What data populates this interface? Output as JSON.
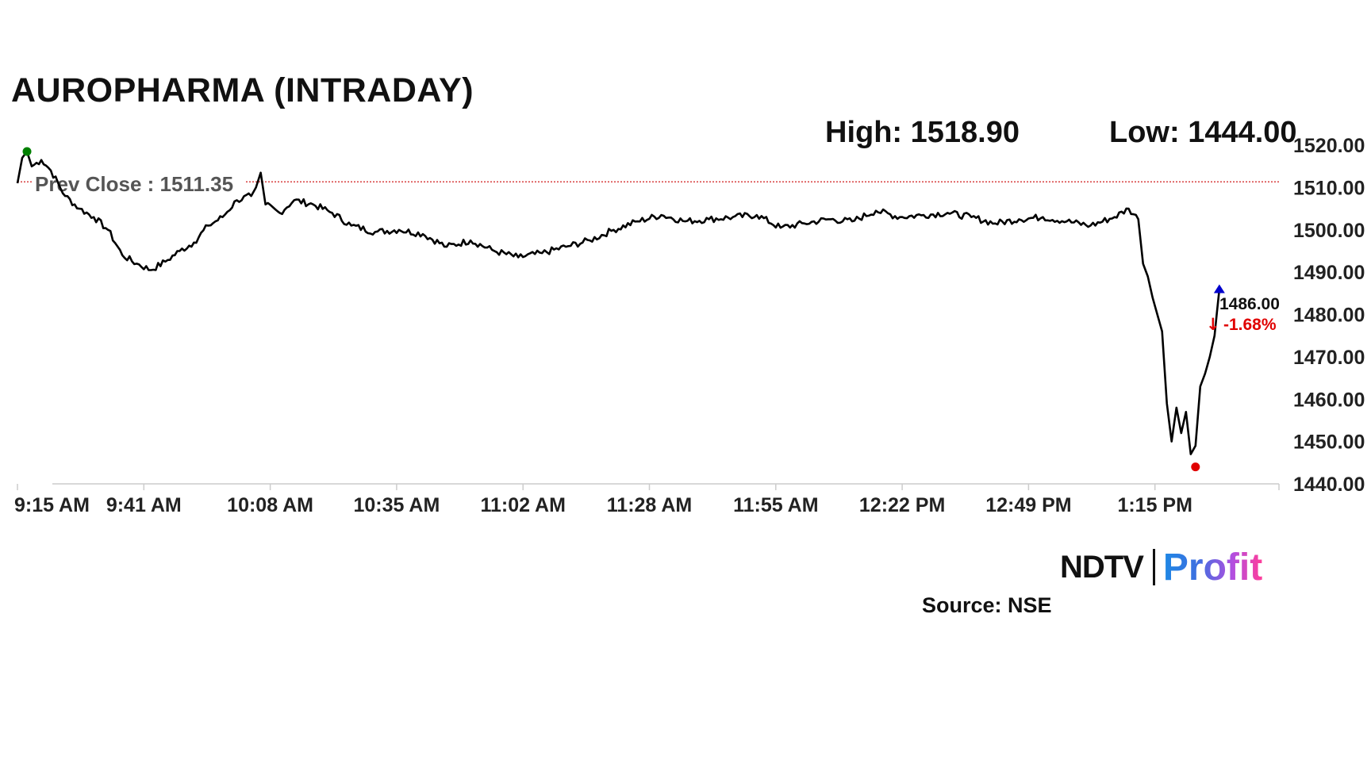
{
  "header": {
    "title": "AUROPHARMA (INTRADAY)",
    "high_text": "High: 1518.90",
    "low_text": "Low: 1444.00"
  },
  "chart_data": {
    "type": "line",
    "title": "AUROPHARMA (INTRADAY)",
    "xlabel": "",
    "ylabel": "",
    "x_tick_labels": [
      "9:15 AM",
      "9:41 AM",
      "10:08 AM",
      "10:35 AM",
      "11:02 AM",
      "11:28 AM",
      "11:55 AM",
      "12:22 PM",
      "12:49 PM",
      "1:15 PM"
    ],
    "y_tick_labels": [
      "1520.00",
      "1510.00",
      "1500.00",
      "1490.00",
      "1480.00",
      "1470.00",
      "1460.00",
      "1450.00",
      "1440.00"
    ],
    "ylim": [
      1440,
      1520
    ],
    "y_axis_side": "right",
    "grid": false,
    "prev_close": {
      "label": "Prev Close : 1511.35",
      "value": 1511.35,
      "color": "#cc0000"
    },
    "series": [
      {
        "name": "",
        "color": "#000000",
        "x": [
          "9:15",
          "9:16",
          "9:17",
          "9:18",
          "9:20",
          "9:22",
          "9:25",
          "9:28",
          "9:31",
          "9:34",
          "9:37",
          "9:40",
          "9:43",
          "9:46",
          "9:49",
          "9:52",
          "9:55",
          "9:58",
          "10:01",
          "10:04",
          "10:05",
          "10:06",
          "10:07",
          "10:10",
          "10:13",
          "10:17",
          "10:21",
          "10:25",
          "10:30",
          "10:35",
          "10:40",
          "10:45",
          "10:50",
          "10:55",
          "11:00",
          "11:05",
          "11:10",
          "11:15",
          "11:20",
          "11:25",
          "11:30",
          "11:35",
          "11:40",
          "11:45",
          "11:50",
          "11:55",
          "12:00",
          "12:05",
          "12:10",
          "12:15",
          "12:20",
          "12:25",
          "12:30",
          "12:35",
          "12:40",
          "12:45",
          "12:50",
          "12:55",
          "13:00",
          "13:05",
          "13:08",
          "13:10",
          "13:11",
          "13:12",
          "13:13",
          "13:14",
          "13:15",
          "13:16",
          "13:17",
          "13:18",
          "13:19",
          "13:20",
          "13:21",
          "13:22",
          "13:23",
          "13:24",
          "13:25",
          "13:26",
          "13:27"
        ],
        "values": [
          1511.0,
          1517.0,
          1518.5,
          1515.0,
          1516.5,
          1514.0,
          1508.0,
          1505.0,
          1503.0,
          1500.0,
          1494.0,
          1492.0,
          1490.5,
          1492.5,
          1495.0,
          1497.0,
          1501.0,
          1503.0,
          1507.0,
          1508.0,
          1510.0,
          1513.5,
          1506.0,
          1504.0,
          1507.0,
          1506.0,
          1504.0,
          1501.0,
          1499.5,
          1500.0,
          1499.0,
          1496.0,
          1497.5,
          1495.0,
          1493.5,
          1494.5,
          1496.0,
          1497.5,
          1500.0,
          1502.0,
          1503.5,
          1502.0,
          1502.5,
          1503.0,
          1503.5,
          1500.5,
          1501.5,
          1502.5,
          1502.0,
          1504.5,
          1503.0,
          1503.5,
          1504.0,
          1503.0,
          1501.5,
          1502.5,
          1503.0,
          1502.0,
          1501.0,
          1503.0,
          1505.0,
          1502.5,
          1492.0,
          1489.0,
          1484.0,
          1480.0,
          1476.0,
          1459.0,
          1450.0,
          1458.0,
          1452.0,
          1457.0,
          1447.0,
          1449.0,
          1463.0,
          1466.0,
          1470.0,
          1475.0,
          1486.0
        ]
      }
    ],
    "annotations": [
      {
        "text": "1486.00",
        "type": "last-price",
        "color": "#111111"
      },
      {
        "text": "-1.68%",
        "type": "change",
        "color": "#e00000",
        "arrow": "down"
      }
    ],
    "markers": [
      {
        "kind": "high",
        "x": "9:17",
        "value": 1518.5,
        "color": "#008000"
      },
      {
        "kind": "low",
        "x": "13:22",
        "value": 1444.0,
        "color": "#e00000"
      },
      {
        "kind": "last",
        "x": "13:27",
        "value": 1486.0,
        "color": "#0000cc"
      }
    ]
  },
  "footer": {
    "brand_ndtv": "NDTV",
    "brand_profit": "Profit",
    "source": "Source: NSE"
  }
}
